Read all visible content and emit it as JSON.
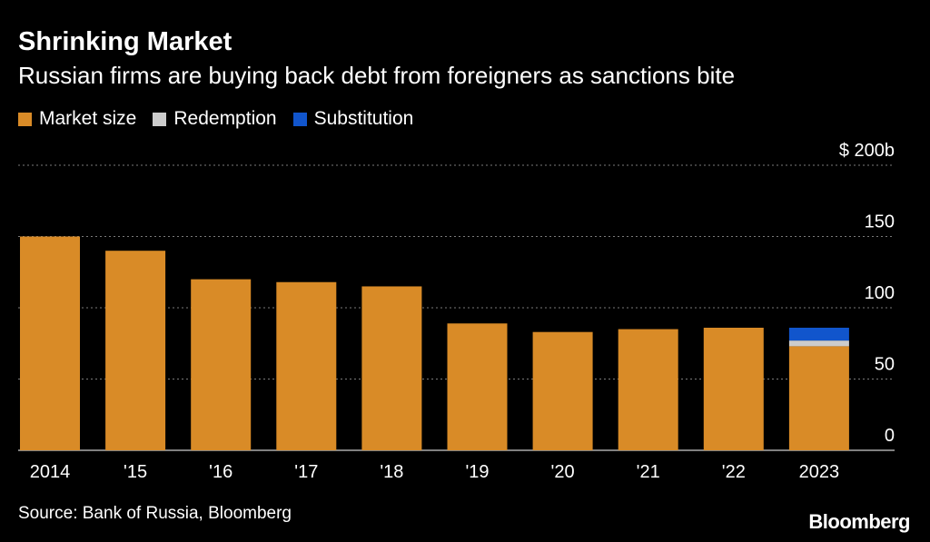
{
  "chart_data": {
    "type": "bar",
    "stacked": true,
    "title": "Shrinking Market",
    "subtitle": "Russian firms are buying back debt from foreigners as sanctions bite",
    "categories": [
      "2014",
      "'15",
      "'16",
      "'17",
      "'18",
      "'19",
      "'20",
      "'21",
      "'22",
      "2023"
    ],
    "series": [
      {
        "name": "Market size",
        "color": "#d98b27",
        "values": [
          150,
          140,
          120,
          118,
          115,
          89,
          83,
          85,
          86,
          73
        ]
      },
      {
        "name": "Redemption",
        "color": "#cccccc",
        "values": [
          0,
          0,
          0,
          0,
          0,
          0,
          0,
          0,
          0,
          4
        ]
      },
      {
        "name": "Substitution",
        "color": "#1155cc",
        "values": [
          0,
          0,
          0,
          0,
          0,
          0,
          0,
          0,
          0,
          9
        ]
      }
    ],
    "y_ticks": [
      {
        "value": 0,
        "label": "0"
      },
      {
        "value": 50,
        "label": "50"
      },
      {
        "value": 100,
        "label": "100"
      },
      {
        "value": 150,
        "label": "150"
      },
      {
        "value": 200,
        "label": "$ 200b"
      }
    ],
    "ylim": [
      0,
      200
    ],
    "grid": true,
    "y_axis_side": "right",
    "legend_placement": "top-left"
  },
  "source": "Source: Bank of Russia, Bloomberg",
  "brand": "Bloomberg"
}
